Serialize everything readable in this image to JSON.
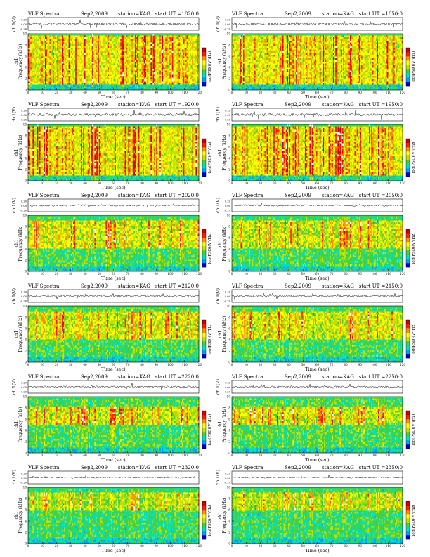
{
  "page": {
    "header_label": "VLF Spectra",
    "date": "Sep2,2009",
    "station": "station=KAG",
    "start_prefix": "start  UT  =",
    "time_axis_label": "Time  (sec)",
    "freq_axis_label": "Frequency  (kHz)",
    "freq_axis_prefix": "ch1",
    "wave_axis_label": "ch.1(V)",
    "colorbar_label": "log(PSD)(V²/Hz)",
    "time_ticks": [
      "0",
      "10",
      "20",
      "30",
      "40",
      "50",
      "60",
      "70",
      "80",
      "90",
      "100",
      "110",
      "120"
    ],
    "freq_ticks": [
      "0",
      "2",
      "4",
      "6",
      "8",
      "10"
    ],
    "wave_ticks": [
      "0.20",
      "0.00",
      "-0.20"
    ]
  },
  "colors": {
    "spectrogram_scale": [
      "#0000d0",
      "#00a0ff",
      "#00e0c0",
      "#40d040",
      "#c0e000",
      "#ffff00",
      "#ff9000",
      "#ff2000",
      "#d00000",
      "#ffffff"
    ],
    "waveform": "#000000",
    "frame": "#000000"
  },
  "chart_data": [
    {
      "type": "heatmap",
      "start_ut": "1820:0",
      "x_range": [
        0,
        120
      ],
      "y_range": [
        0,
        10
      ],
      "x_unit": "sec",
      "y_unit": "kHz",
      "activity": "high",
      "dominant_band_khz": [
        1,
        10
      ]
    },
    {
      "type": "heatmap",
      "start_ut": "1850:0",
      "x_range": [
        0,
        120
      ],
      "y_range": [
        0,
        10
      ],
      "x_unit": "sec",
      "y_unit": "kHz",
      "activity": "high",
      "dominant_band_khz": [
        1,
        10
      ]
    },
    {
      "type": "heatmap",
      "start_ut": "1920:0",
      "x_range": [
        0,
        120
      ],
      "y_range": [
        0,
        10
      ],
      "x_unit": "sec",
      "y_unit": "kHz",
      "activity": "high",
      "dominant_band_khz": [
        1,
        10
      ]
    },
    {
      "type": "heatmap",
      "start_ut": "1950:0",
      "x_range": [
        0,
        120
      ],
      "y_range": [
        0,
        10
      ],
      "x_unit": "sec",
      "y_unit": "kHz",
      "activity": "high",
      "dominant_band_khz": [
        1,
        10
      ]
    },
    {
      "type": "heatmap",
      "start_ut": "2020:0",
      "x_range": [
        0,
        120
      ],
      "y_range": [
        0,
        10
      ],
      "x_unit": "sec",
      "y_unit": "kHz",
      "activity": "medium",
      "dominant_band_khz": [
        4,
        9
      ]
    },
    {
      "type": "heatmap",
      "start_ut": "2050:0",
      "x_range": [
        0,
        120
      ],
      "y_range": [
        0,
        10
      ],
      "x_unit": "sec",
      "y_unit": "kHz",
      "activity": "medium",
      "dominant_band_khz": [
        4,
        9
      ]
    },
    {
      "type": "heatmap",
      "start_ut": "2120:0",
      "x_range": [
        0,
        120
      ],
      "y_range": [
        0,
        10
      ],
      "x_unit": "sec",
      "y_unit": "kHz",
      "activity": "medium",
      "dominant_band_khz": [
        4,
        9
      ]
    },
    {
      "type": "heatmap",
      "start_ut": "2150:0",
      "x_range": [
        0,
        120
      ],
      "y_range": [
        0,
        10
      ],
      "x_unit": "sec",
      "y_unit": "kHz",
      "activity": "medium",
      "dominant_band_khz": [
        4,
        9
      ]
    },
    {
      "type": "heatmap",
      "start_ut": "2220:0",
      "x_range": [
        0,
        120
      ],
      "y_range": [
        0,
        10
      ],
      "x_unit": "sec",
      "y_unit": "kHz",
      "activity": "medium",
      "dominant_band_khz": [
        5,
        8
      ]
    },
    {
      "type": "heatmap",
      "start_ut": "2250:0",
      "x_range": [
        0,
        120
      ],
      "y_range": [
        0,
        10
      ],
      "x_unit": "sec",
      "y_unit": "kHz",
      "activity": "medium",
      "dominant_band_khz": [
        5,
        8
      ]
    },
    {
      "type": "heatmap",
      "start_ut": "2320:0",
      "x_range": [
        0,
        120
      ],
      "y_range": [
        0,
        10
      ],
      "x_unit": "sec",
      "y_unit": "kHz",
      "activity": "low",
      "dominant_band_khz": [
        6,
        9
      ]
    },
    {
      "type": "heatmap",
      "start_ut": "2350:0",
      "x_range": [
        0,
        120
      ],
      "y_range": [
        0,
        10
      ],
      "x_unit": "sec",
      "y_unit": "kHz",
      "activity": "low",
      "dominant_band_khz": [
        6,
        9
      ]
    }
  ]
}
